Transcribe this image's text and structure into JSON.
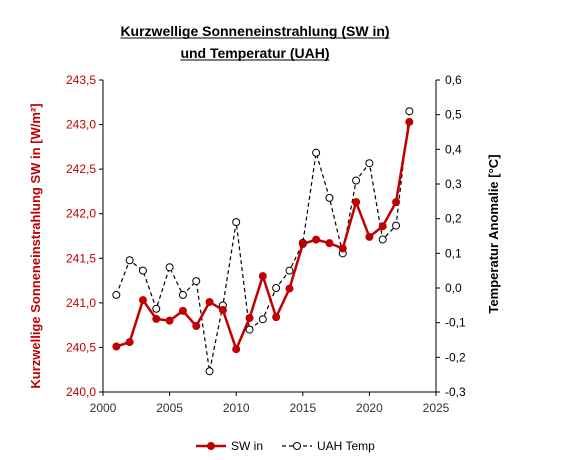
{
  "chart_data": {
    "type": "line",
    "title_line1": "Kurzwellige Sonneneinstrahlung (SW in)",
    "title_line2": "und Temperatur (UAH)",
    "xlabel": "",
    "ylabel_left": "Kurzwellige Sonneneinstrahlung SW in    [W/m²]",
    "ylabel_right": "Temperatur Anomalie [°C]",
    "xlim": [
      2000,
      2025
    ],
    "xticks": [
      2000,
      2005,
      2010,
      2015,
      2020,
      2025
    ],
    "ylim_left": [
      240.0,
      243.5
    ],
    "yticks_left": [
      "240,0",
      "240,5",
      "241,0",
      "241,5",
      "242,0",
      "242,5",
      "243,0",
      "243,5"
    ],
    "ylim_right": [
      -0.3,
      0.6
    ],
    "yticks_right": [
      "-0,3",
      "-0,2",
      "-0,1",
      "0,0",
      "0,1",
      "0,2",
      "0,3",
      "0,4",
      "0,5",
      "0,6"
    ],
    "x": [
      2001,
      2002,
      2003,
      2004,
      2005,
      2006,
      2007,
      2008,
      2009,
      2010,
      2011,
      2012,
      2013,
      2014,
      2015,
      2016,
      2017,
      2018,
      2019,
      2020,
      2021,
      2022,
      2023
    ],
    "series": [
      {
        "name": "SW in",
        "axis": "left",
        "color": "#c00000",
        "style": "solid",
        "values": [
          240.51,
          240.56,
          241.03,
          240.82,
          240.8,
          240.91,
          240.74,
          241.01,
          240.92,
          240.48,
          240.83,
          241.3,
          240.84,
          241.16,
          241.66,
          241.71,
          241.67,
          241.61,
          242.13,
          241.74,
          241.86,
          242.13,
          243.03
        ]
      },
      {
        "name": "UAH Temp",
        "axis": "right",
        "color": "#000000",
        "style": "dashed",
        "values": [
          -0.02,
          0.08,
          0.05,
          -0.06,
          0.06,
          -0.02,
          0.02,
          -0.24,
          -0.05,
          0.19,
          -0.12,
          -0.09,
          0.0,
          0.05,
          0.13,
          0.39,
          0.26,
          0.1,
          0.31,
          0.36,
          0.14,
          0.18,
          0.51
        ]
      }
    ],
    "legend_position": "bottom",
    "grid": false
  }
}
